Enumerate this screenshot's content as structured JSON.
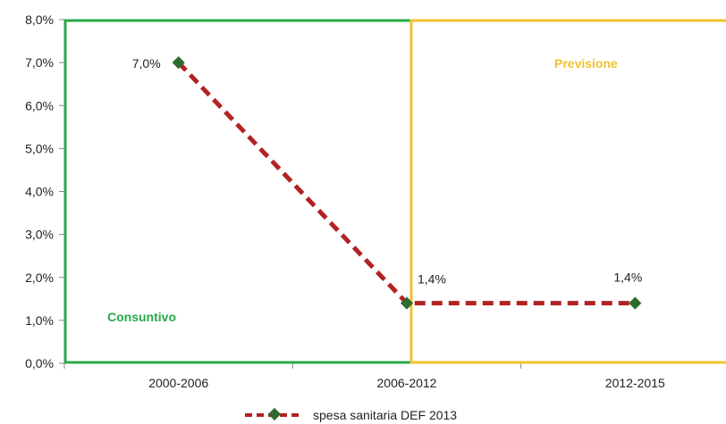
{
  "chart_data": {
    "type": "line",
    "categories": [
      "2000-2006",
      "2006-2012",
      "2012-2015"
    ],
    "series": [
      {
        "name": "spesa sanitaria DEF 2013",
        "values": [
          7.0,
          1.4,
          1.4
        ],
        "labels": [
          "7,0%",
          "1,4%",
          "1,4%"
        ]
      }
    ],
    "yticks": [
      "0,0%",
      "1,0%",
      "2,0%",
      "3,0%",
      "4,0%",
      "5,0%",
      "6,0%",
      "7,0%",
      "8,0%"
    ],
    "ylim": [
      0,
      8
    ],
    "regions": [
      {
        "label": "Consuntivo",
        "color": "#2aa84a"
      },
      {
        "label": "Previsione",
        "color": "#f2c12e"
      }
    ],
    "line_color": "#b22222",
    "marker_color": "#2e6b2e",
    "legend_position": "bottom"
  }
}
